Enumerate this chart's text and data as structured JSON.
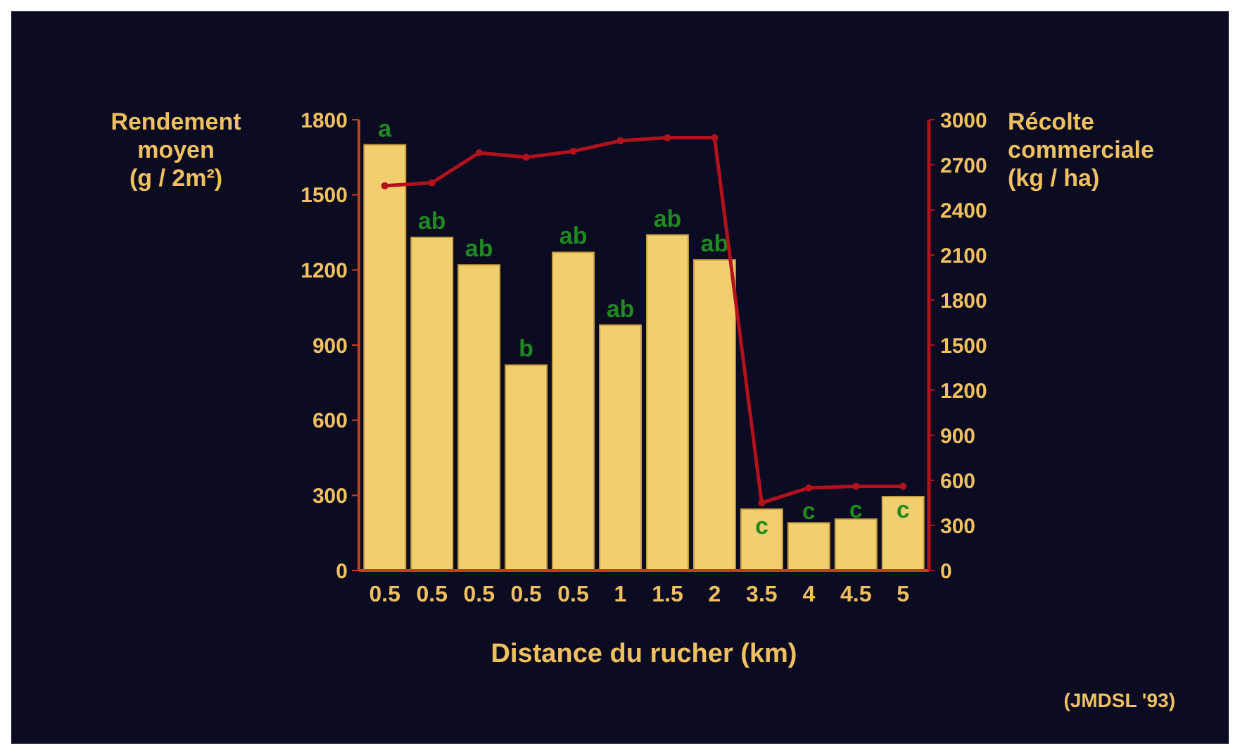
{
  "chart_data": {
    "type": "bar",
    "xlabel": "Distance du rucher (km)",
    "ylabel": "Rendement\nmoyen\n(g / 2m²)",
    "y2label": "Récolte\ncommerciale\n(kg / ha)",
    "categories": [
      "0.5",
      "0.5",
      "0.5",
      "0.5",
      "0.5",
      "1",
      "1.5",
      "2",
      "3.5",
      "4",
      "4.5",
      "5"
    ],
    "series": [
      {
        "color": "#f2cf6e",
        "values": [
          1700,
          1330,
          1220,
          820,
          1270,
          980,
          1340,
          1240,
          245,
          190,
          205,
          295
        ]
      },
      {
        "type": "line",
        "axis": "y2",
        "color": "#b3121c",
        "values": [
          2560,
          2580,
          2780,
          2750,
          2790,
          2860,
          2880,
          2880,
          450,
          550,
          560,
          560
        ]
      }
    ],
    "ylim": [
      0,
      1800
    ],
    "yticks": [
      0,
      300,
      600,
      900,
      1200,
      1500,
      1800
    ],
    "y2lim": [
      0,
      3000
    ],
    "y2ticks": [
      0,
      300,
      600,
      900,
      1200,
      1500,
      1800,
      2100,
      2400,
      2700,
      3000
    ],
    "marker": "circle",
    "grid": false,
    "annotations": [
      "a",
      "ab",
      "ab",
      "b",
      "ab",
      "ab",
      "ab",
      "ab",
      "c",
      "c",
      "c",
      "c",
      "(JMDSL '93)"
    ]
  }
}
